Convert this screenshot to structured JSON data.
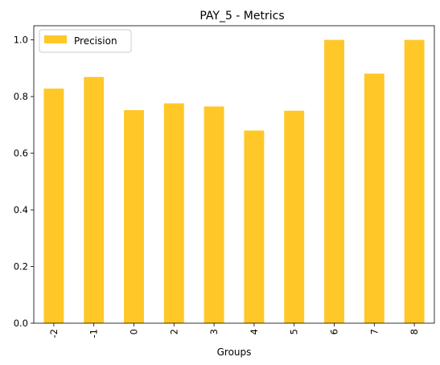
{
  "colors": {
    "bar": "#FFC727",
    "axis": "#000000",
    "legend_border": "#cccccc",
    "background": "#ffffff"
  },
  "chart_data": {
    "type": "bar",
    "title": "PAY_5 - Metrics",
    "xlabel": "Groups",
    "ylabel": "",
    "categories": [
      "-2",
      "-1",
      "0",
      "2",
      "3",
      "4",
      "5",
      "6",
      "7",
      "8"
    ],
    "series": [
      {
        "name": "Precision",
        "values": [
          0.828,
          0.869,
          0.752,
          0.776,
          0.765,
          0.68,
          0.75,
          1.0,
          0.881,
          1.0
        ]
      }
    ],
    "ylim": [
      0,
      1.05
    ],
    "yticks": [
      "0.0",
      "0.2",
      "0.4",
      "0.6",
      "0.8",
      "1.0"
    ],
    "grid": false,
    "legend_position": "top-left"
  }
}
